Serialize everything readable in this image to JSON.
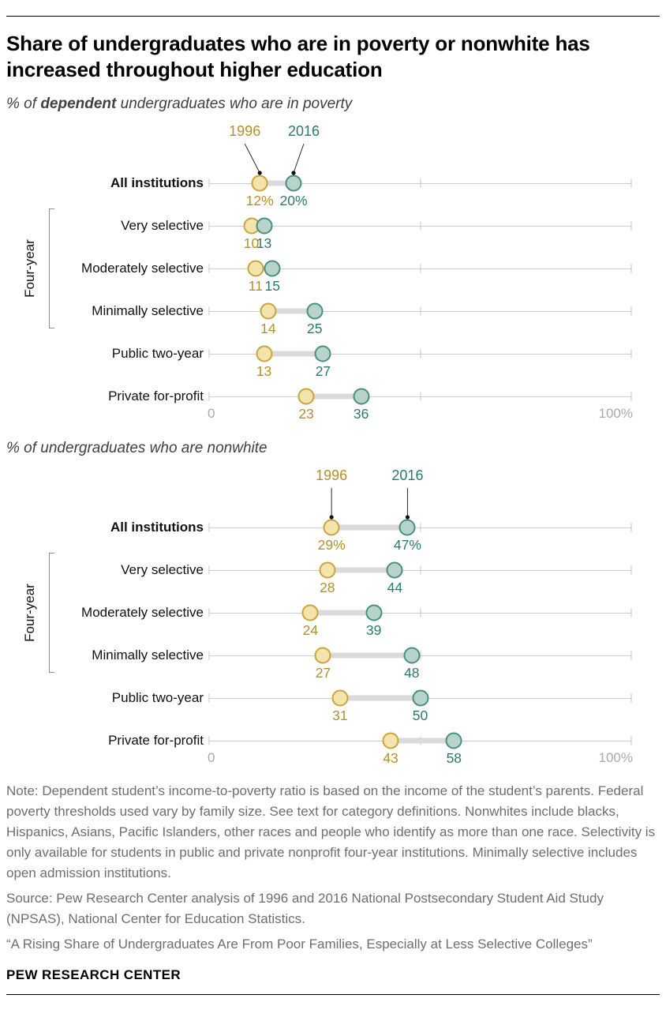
{
  "header": {
    "title": "Share of undergraduates who are in poverty or nonwhite has increased throughout higher education"
  },
  "chart_data": [
    {
      "type": "dumbbell",
      "title_segments": [
        {
          "text": "% of ",
          "bold": false
        },
        {
          "text": "dependent",
          "bold": true
        },
        {
          "text": " undergraduates who are in poverty",
          "bold": false
        }
      ],
      "series": [
        {
          "name": "1996",
          "stroke": "#c9a43c",
          "fill": "#f3e3ad",
          "text_color": "#b3902c"
        },
        {
          "name": "2016",
          "stroke": "#47907f",
          "fill": "#b7d3ca",
          "text_color": "#2b7a68"
        }
      ],
      "xlim": [
        0,
        100
      ],
      "ticks": [
        0,
        50,
        100
      ],
      "axis_labels": {
        "min": "0",
        "max": "100%"
      },
      "legend_offsets": [
        -19,
        13
      ],
      "group": {
        "label": "Four-year",
        "first_row": 1,
        "last_row": 3
      },
      "rows": [
        {
          "label": "All institutions",
          "bold": true,
          "values": [
            12,
            20
          ],
          "value_labels": [
            "12%",
            "20%"
          ]
        },
        {
          "label": "Very selective",
          "bold": false,
          "values": [
            10,
            13
          ],
          "value_labels": [
            "10",
            "13"
          ]
        },
        {
          "label": "Moderately selective",
          "bold": false,
          "values": [
            11,
            15
          ],
          "value_labels": [
            "11",
            "15"
          ]
        },
        {
          "label": "Minimally selective",
          "bold": false,
          "values": [
            14,
            25
          ],
          "value_labels": [
            "14",
            "25"
          ]
        },
        {
          "label": "Public two-year",
          "bold": false,
          "values": [
            13,
            27
          ],
          "value_labels": [
            "13",
            "27"
          ]
        },
        {
          "label": "Private for-profit",
          "bold": false,
          "values": [
            23,
            36
          ],
          "value_labels": [
            "23",
            "36"
          ]
        }
      ]
    },
    {
      "type": "dumbbell",
      "title_segments": [
        {
          "text": "% of undergraduates who are nonwhite",
          "bold": false
        }
      ],
      "series": [
        {
          "name": "1996",
          "stroke": "#c9a43c",
          "fill": "#f3e3ad",
          "text_color": "#b3902c"
        },
        {
          "name": "2016",
          "stroke": "#47907f",
          "fill": "#b7d3ca",
          "text_color": "#2b7a68"
        }
      ],
      "xlim": [
        0,
        100
      ],
      "ticks": [
        0,
        50,
        100
      ],
      "axis_labels": {
        "min": "0",
        "max": "100%"
      },
      "legend_offsets": [
        0,
        0
      ],
      "group": {
        "label": "Four-year",
        "first_row": 1,
        "last_row": 3
      },
      "rows": [
        {
          "label": "All institutions",
          "bold": true,
          "values": [
            29,
            47
          ],
          "value_labels": [
            "29%",
            "47%"
          ]
        },
        {
          "label": "Very selective",
          "bold": false,
          "values": [
            28,
            44
          ],
          "value_labels": [
            "28",
            "44"
          ]
        },
        {
          "label": "Moderately selective",
          "bold": false,
          "values": [
            24,
            39
          ],
          "value_labels": [
            "24",
            "39"
          ]
        },
        {
          "label": "Minimally selective",
          "bold": false,
          "values": [
            27,
            48
          ],
          "value_labels": [
            "27",
            "48"
          ]
        },
        {
          "label": "Public two-year",
          "bold": false,
          "values": [
            31,
            50
          ],
          "value_labels": [
            "31",
            "50"
          ]
        },
        {
          "label": "Private for-profit",
          "bold": false,
          "values": [
            43,
            58
          ],
          "value_labels": [
            "43",
            "58"
          ]
        }
      ]
    }
  ],
  "notes": {
    "note": "Note: Dependent student’s income-to-poverty ratio is based on the income of the student’s parents. Federal poverty thresholds used vary by family size. See text for category definitions. Nonwhites include blacks, Hispanics, Asians, Pacific Islanders, other races and people who identify as more than one race. Selectivity is only available for students in public and private nonprofit four-year institutions. Minimally selective includes open admission institutions.",
    "source": "Source: Pew Research Center analysis of 1996 and 2016 National Postsecondary Student Aid Study (NPSAS), National Center for Education Statistics.",
    "quote": "“A Rising Share of Undergraduates Are From Poor Families, Especially at Less Selective Colleges”"
  },
  "footer": {
    "brand": "PEW RESEARCH CENTER"
  }
}
